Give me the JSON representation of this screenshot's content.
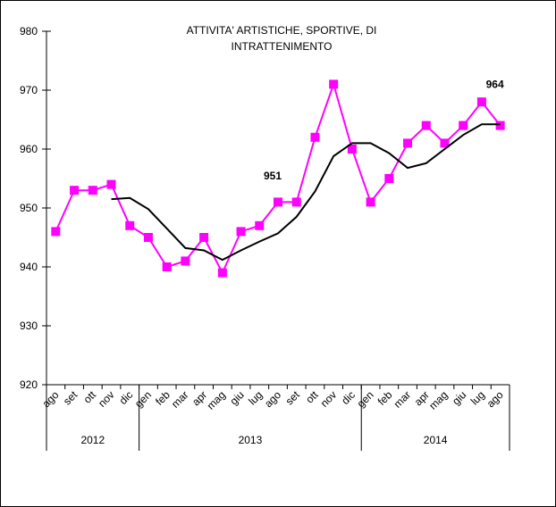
{
  "chart_data": {
    "type": "line",
    "title": [
      "ATTIVITA' ARTISTICHE, SPORTIVE, DI",
      "INTRATTENIMENTO"
    ],
    "categories": [
      "ago",
      "set",
      "ott",
      "nov",
      "dic",
      "gen",
      "feb",
      "mar",
      "apr",
      "mag",
      "giu",
      "lug",
      "ago",
      "set",
      "ott",
      "nov",
      "dic",
      "gen",
      "feb",
      "mar",
      "apr",
      "mag",
      "giu",
      "lug",
      "ago"
    ],
    "groups": [
      {
        "label": "2012",
        "count": 5
      },
      {
        "label": "2013",
        "count": 12
      },
      {
        "label": "2014",
        "count": 8
      }
    ],
    "series": [
      {
        "color": "#ff00ff",
        "marker": "square",
        "values": [
          946,
          953,
          953,
          954,
          947,
          945,
          940,
          941,
          945,
          939,
          946,
          947,
          951,
          951,
          962,
          971,
          960,
          951,
          955,
          961,
          964,
          961,
          964,
          968,
          964
        ],
        "value_labels": [
          null,
          null,
          null,
          null,
          null,
          null,
          null,
          null,
          null,
          null,
          null,
          null,
          "951",
          null,
          null,
          null,
          null,
          null,
          null,
          null,
          null,
          null,
          null,
          null,
          "964"
        ]
      },
      {
        "color": "#000000",
        "values": [
          null,
          null,
          null,
          951.5,
          951.7,
          949.8,
          946.5,
          943.2,
          942.8,
          941.2,
          942.8,
          944.3,
          945.7,
          948.5,
          952.8,
          958.8,
          961,
          961,
          959.3,
          956.8,
          957.6,
          960,
          962.4,
          964.2,
          964.2
        ]
      }
    ],
    "ylim": [
      920,
      980
    ],
    "yticks": [
      920,
      930,
      940,
      950,
      960,
      970,
      980
    ]
  }
}
